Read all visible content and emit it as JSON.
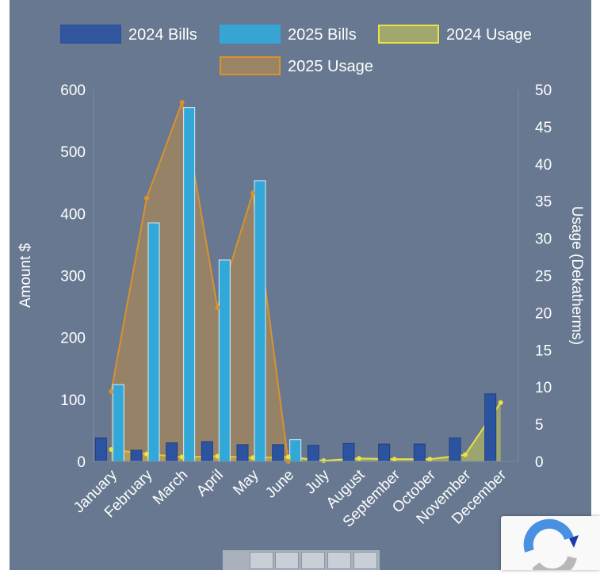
{
  "chart_data": {
    "type": "bar",
    "categories": [
      "January",
      "February",
      "March",
      "April",
      "May",
      "June",
      "July",
      "August",
      "September",
      "October",
      "November",
      "December"
    ],
    "series": [
      {
        "name": "2024 Bills",
        "type": "bar",
        "axis": "left",
        "color": "#2c53a0",
        "values": [
          38,
          18,
          30,
          32,
          27,
          27,
          26,
          29,
          28,
          28,
          38,
          109
        ]
      },
      {
        "name": "2025 Bills",
        "type": "bar",
        "axis": "left",
        "color": "#32a8d9",
        "values": [
          124,
          385,
          571,
          325,
          453,
          35,
          null,
          null,
          null,
          null,
          null,
          null
        ]
      },
      {
        "name": "2024 Usage",
        "type": "area",
        "axis": "right",
        "color": "#e8e344",
        "values": [
          1.6,
          1.0,
          0.6,
          0.7,
          0.5,
          0.6,
          0.1,
          0.4,
          0.3,
          0.3,
          0.9,
          7.9
        ]
      },
      {
        "name": "2025 Usage",
        "type": "area",
        "axis": "right",
        "color": "#d9922e",
        "values": [
          9.4,
          35.4,
          48.3,
          20.7,
          36.1,
          0.0,
          null,
          null,
          null,
          null,
          null,
          null
        ]
      }
    ],
    "ylabel": "Amount $",
    "y2label": "Usage (Dekatherms)",
    "ylim": [
      0,
      600
    ],
    "y2lim": [
      0,
      50
    ],
    "yticks": [
      "0",
      "100",
      "200",
      "300",
      "400",
      "500",
      "600"
    ],
    "y2ticks": [
      "0",
      "5",
      "10",
      "15",
      "20",
      "25",
      "30",
      "35",
      "40",
      "45",
      "50"
    ],
    "grid": false,
    "legend_position": "top"
  }
}
